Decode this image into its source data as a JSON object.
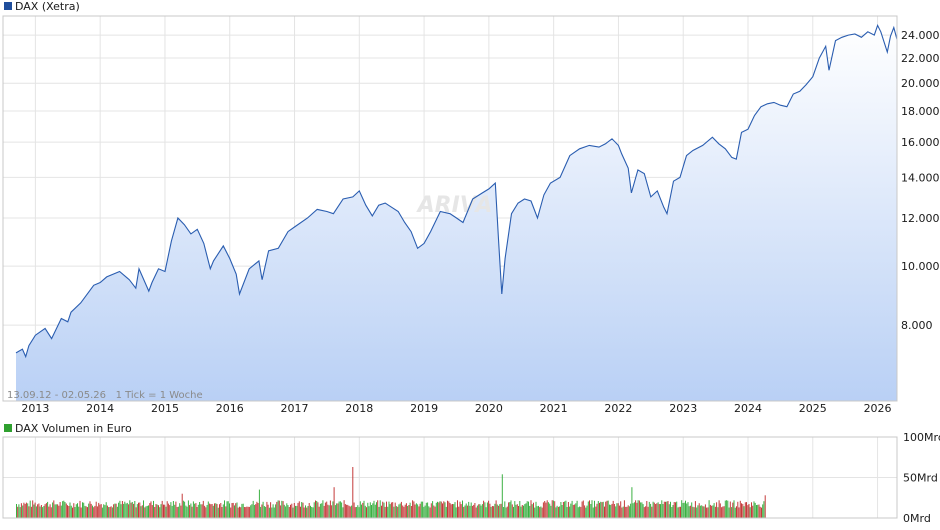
{
  "chart_data": [
    {
      "type": "area",
      "title": "DAX (Xetra)",
      "legend_color": "#1f4e9c",
      "line_color": "#2a5db0",
      "fill_top_color": "#ffffff",
      "fill_bottom_color": "#b9d0f5",
      "range_text": "13.09.12 - 02.05.26   1 Tick = 1 Woche",
      "watermark": "ARIVA",
      "y_scale": "log",
      "ylim": [
        6000,
        25800
      ],
      "xlim": [
        2012.5,
        2026.3
      ],
      "grid": true,
      "x_tick_labels": [
        "2013",
        "2014",
        "2015",
        "2016",
        "2017",
        "2018",
        "2019",
        "2020",
        "2021",
        "2022",
        "2023",
        "2024",
        "2025",
        "2026"
      ],
      "y_ticks": [
        {
          "value": 8000,
          "label": "8.000"
        },
        {
          "value": 10000,
          "label": "10.000"
        },
        {
          "value": 12000,
          "label": "12.000"
        },
        {
          "value": 14000,
          "label": "14.000"
        },
        {
          "value": 16000,
          "label": "16.000"
        },
        {
          "value": 18000,
          "label": "18.000"
        },
        {
          "value": 20000,
          "label": "20.000"
        },
        {
          "value": 22000,
          "label": "22.000"
        },
        {
          "value": 24000,
          "label": "24.000"
        }
      ],
      "series": [
        {
          "x": [
            2012.7,
            2012.8,
            2012.85,
            2012.9,
            2013.0,
            2013.15,
            2013.25,
            2013.4,
            2013.5,
            2013.55,
            2013.7,
            2013.9,
            2014.0,
            2014.1,
            2014.3,
            2014.45,
            2014.55,
            2014.6,
            2014.75,
            2014.8,
            2014.9,
            2015.0,
            2015.1,
            2015.2,
            2015.3,
            2015.4,
            2015.5,
            2015.6,
            2015.7,
            2015.75,
            2015.9,
            2016.0,
            2016.1,
            2016.15,
            2016.3,
            2016.45,
            2016.5,
            2016.6,
            2016.75,
            2016.9,
            2017.0,
            2017.2,
            2017.35,
            2017.5,
            2017.6,
            2017.75,
            2017.9,
            2018.0,
            2018.1,
            2018.2,
            2018.3,
            2018.4,
            2018.5,
            2018.6,
            2018.7,
            2018.8,
            2018.9,
            2019.0,
            2019.1,
            2019.25,
            2019.4,
            2019.5,
            2019.6,
            2019.75,
            2019.9,
            2020.0,
            2020.1,
            2020.15,
            2020.2,
            2020.25,
            2020.35,
            2020.45,
            2020.55,
            2020.65,
            2020.75,
            2020.85,
            2020.95,
            2021.1,
            2021.25,
            2021.4,
            2021.55,
            2021.7,
            2021.8,
            2021.9,
            2022.0,
            2022.05,
            2022.15,
            2022.2,
            2022.3,
            2022.4,
            2022.5,
            2022.6,
            2022.7,
            2022.75,
            2022.85,
            2022.95,
            2023.05,
            2023.15,
            2023.3,
            2023.45,
            2023.55,
            2023.65,
            2023.75,
            2023.82,
            2023.9,
            2024.0,
            2024.1,
            2024.2,
            2024.3,
            2024.4,
            2024.5,
            2024.6,
            2024.7,
            2024.8,
            2024.9,
            2025.0,
            2025.1,
            2025.2,
            2025.25,
            2025.35,
            2025.45,
            2025.55,
            2025.65,
            2025.75,
            2025.85,
            2025.95,
            2026.0,
            2026.05,
            2026.15,
            2026.2,
            2026.25,
            2026.3
          ],
          "values": [
            7200,
            7300,
            7100,
            7400,
            7700,
            7900,
            7600,
            8200,
            8100,
            8400,
            8700,
            9300,
            9400,
            9600,
            9800,
            9500,
            9200,
            9900,
            9100,
            9400,
            9900,
            9800,
            11000,
            12000,
            11700,
            11300,
            11500,
            10900,
            9900,
            10200,
            10800,
            10300,
            9700,
            9000,
            9900,
            10200,
            9500,
            10600,
            10700,
            11400,
            11600,
            12000,
            12400,
            12300,
            12200,
            12900,
            13000,
            13300,
            12600,
            12100,
            12600,
            12700,
            12500,
            12300,
            11800,
            11400,
            10700,
            10900,
            11400,
            12300,
            12200,
            12000,
            11800,
            12900,
            13200,
            13400,
            13700,
            11000,
            9000,
            10300,
            12200,
            12700,
            12900,
            12800,
            12000,
            13100,
            13700,
            14000,
            15200,
            15600,
            15800,
            15700,
            15900,
            16200,
            15800,
            15300,
            14500,
            13200,
            14400,
            14200,
            13000,
            13300,
            12500,
            12200,
            13800,
            14000,
            15200,
            15500,
            15800,
            16300,
            15900,
            15600,
            15100,
            15000,
            16600,
            16800,
            17700,
            18300,
            18500,
            18600,
            18400,
            18300,
            19200,
            19400,
            19900,
            20500,
            22000,
            23000,
            21000,
            23500,
            23800,
            24000,
            24100,
            23800,
            24300,
            24000,
            24900,
            24300,
            22500,
            23900,
            24700,
            23600
          ]
        }
      ]
    },
    {
      "type": "bar",
      "title": "DAX Volumen in Euro",
      "legend_color": "#2fa02f",
      "up_color": "#3cb043",
      "down_color": "#c43a3a",
      "ylim": [
        0,
        100
      ],
      "y_unit": "Mrd",
      "grid": true,
      "y_ticks": [
        {
          "value": 0,
          "label": "0Mrd"
        },
        {
          "value": 50,
          "label": "50Mrd"
        },
        {
          "value": 100,
          "label": "100Mrd"
        }
      ],
      "xlim": [
        2012.5,
        2026.3
      ],
      "x_start": 2012.7,
      "x_end": 2024.25,
      "bars_per_year": 52,
      "base_level_mrd": 17,
      "peaks": [
        {
          "x": 2017.9,
          "value": 63
        },
        {
          "x": 2017.6,
          "value": 38
        },
        {
          "x": 2020.2,
          "value": 54
        },
        {
          "x": 2016.45,
          "value": 35
        },
        {
          "x": 2022.2,
          "value": 38
        },
        {
          "x": 2015.25,
          "value": 30
        },
        {
          "x": 2024.25,
          "value": 28
        }
      ]
    }
  ]
}
